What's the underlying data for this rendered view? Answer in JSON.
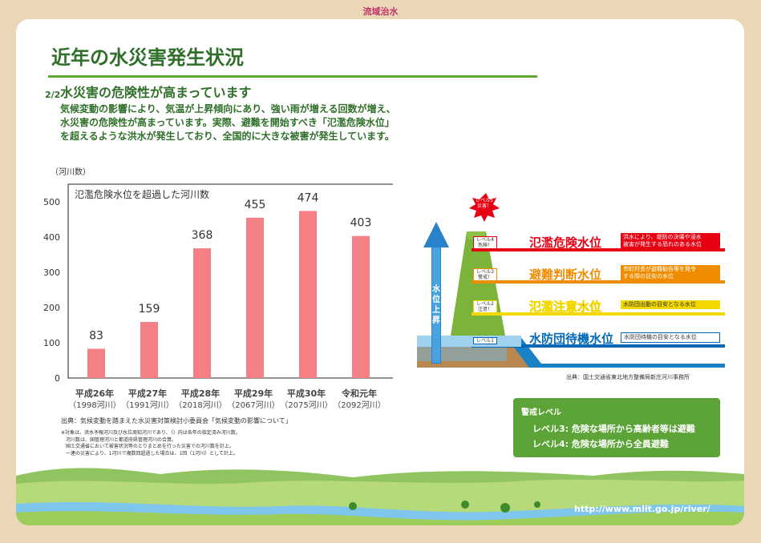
{
  "header": {
    "section_tag": "流域治水",
    "page_indicator": "2/2"
  },
  "title": "近年の水災害発生状況",
  "subtitle": "水災害の危険性が高まっています",
  "body_lines": [
    "気候変動の影響により、気温が上昇傾向にあり、強い雨が増える回数が増え、",
    "水災害の危険性が高まっています。実際、避難を開始すべき「氾濫危険水位」",
    "を超えるような洪水が発生しており、全国的に大きな被害が発生しています。"
  ],
  "colors": {
    "green": "#2f6f2a",
    "bar": "#f47f84",
    "red": "#e60012",
    "orange": "#f08c00",
    "yellow": "#f2d800",
    "blue": "#0068b7"
  },
  "chart_data": {
    "type": "bar",
    "title": "氾濫危険水位を超過した河川数",
    "ylabel": "（河川数）",
    "xlabel": "",
    "ylim": [
      0,
      500
    ],
    "yticks": [
      0,
      100,
      200,
      300,
      400,
      500
    ],
    "categories": [
      "平成26年",
      "平成27年",
      "平成28年",
      "平成29年",
      "平成30年",
      "令和元年"
    ],
    "category_sub": [
      "（1998河川）",
      "（1991河川）",
      "（2018河川）",
      "（2067河川）",
      "（2075河川）",
      "（2092河川）"
    ],
    "values": [
      83,
      159,
      368,
      455,
      474,
      403
    ],
    "grid": false,
    "legend": "none"
  },
  "chart_source": "出典：気候変動を踏まえた水災害対策検討小委員会「気候変動の影響について」",
  "chart_notes": [
    "※対象は、洪水予報河川及び水位周知河川であり、（）内は各年の指定済み河川数。",
    "　河川数は、国管理河川と都道府県管理河川の合算。",
    "　国土交通省において被害状況等のとりまとめを行った災害での河川数を計上。",
    "　一連の災害により、1河川で複数回超過した場合は、1回（1河川）として計上。"
  ],
  "diagram": {
    "arrow_label": [
      "水",
      "位",
      "上",
      "昇"
    ],
    "badges": [
      {
        "line1": "レベル5",
        "line2": "災害！"
      },
      {
        "line1": "レベル4",
        "line2": "危険！"
      },
      {
        "line1": "レベル3",
        "line2": "警戒！"
      },
      {
        "line1": "レベル2",
        "line2": "注意！"
      },
      {
        "line1": "レベル1",
        "line2": ""
      }
    ],
    "levels": [
      {
        "name": "氾濫危険水位",
        "desc1": "洪水により、堤防の決壊や浸水",
        "desc2": "被害が発生する恐れのある水位"
      },
      {
        "name": "避難判断水位",
        "desc1": "市町村長が避難勧告等を発令",
        "desc2": "する際の目安の水位"
      },
      {
        "name": "氾濫注意水位",
        "desc1": "水防団出動の目安となる水位",
        "desc2": ""
      },
      {
        "name": "水防団待機水位",
        "desc1": "水防団待機の目安となる水位",
        "desc2": ""
      }
    ],
    "source": "出典：国土交通省東北地方整備局新庄河川事務所"
  },
  "alert": {
    "heading": "警戒レベル",
    "line1": "レベル3: 危険な場所から高齢者等は避難",
    "line2": "レベル4: 危険な場所から全員避難"
  },
  "footer": {
    "url": "http://www.mlit.go.jp/river/"
  }
}
